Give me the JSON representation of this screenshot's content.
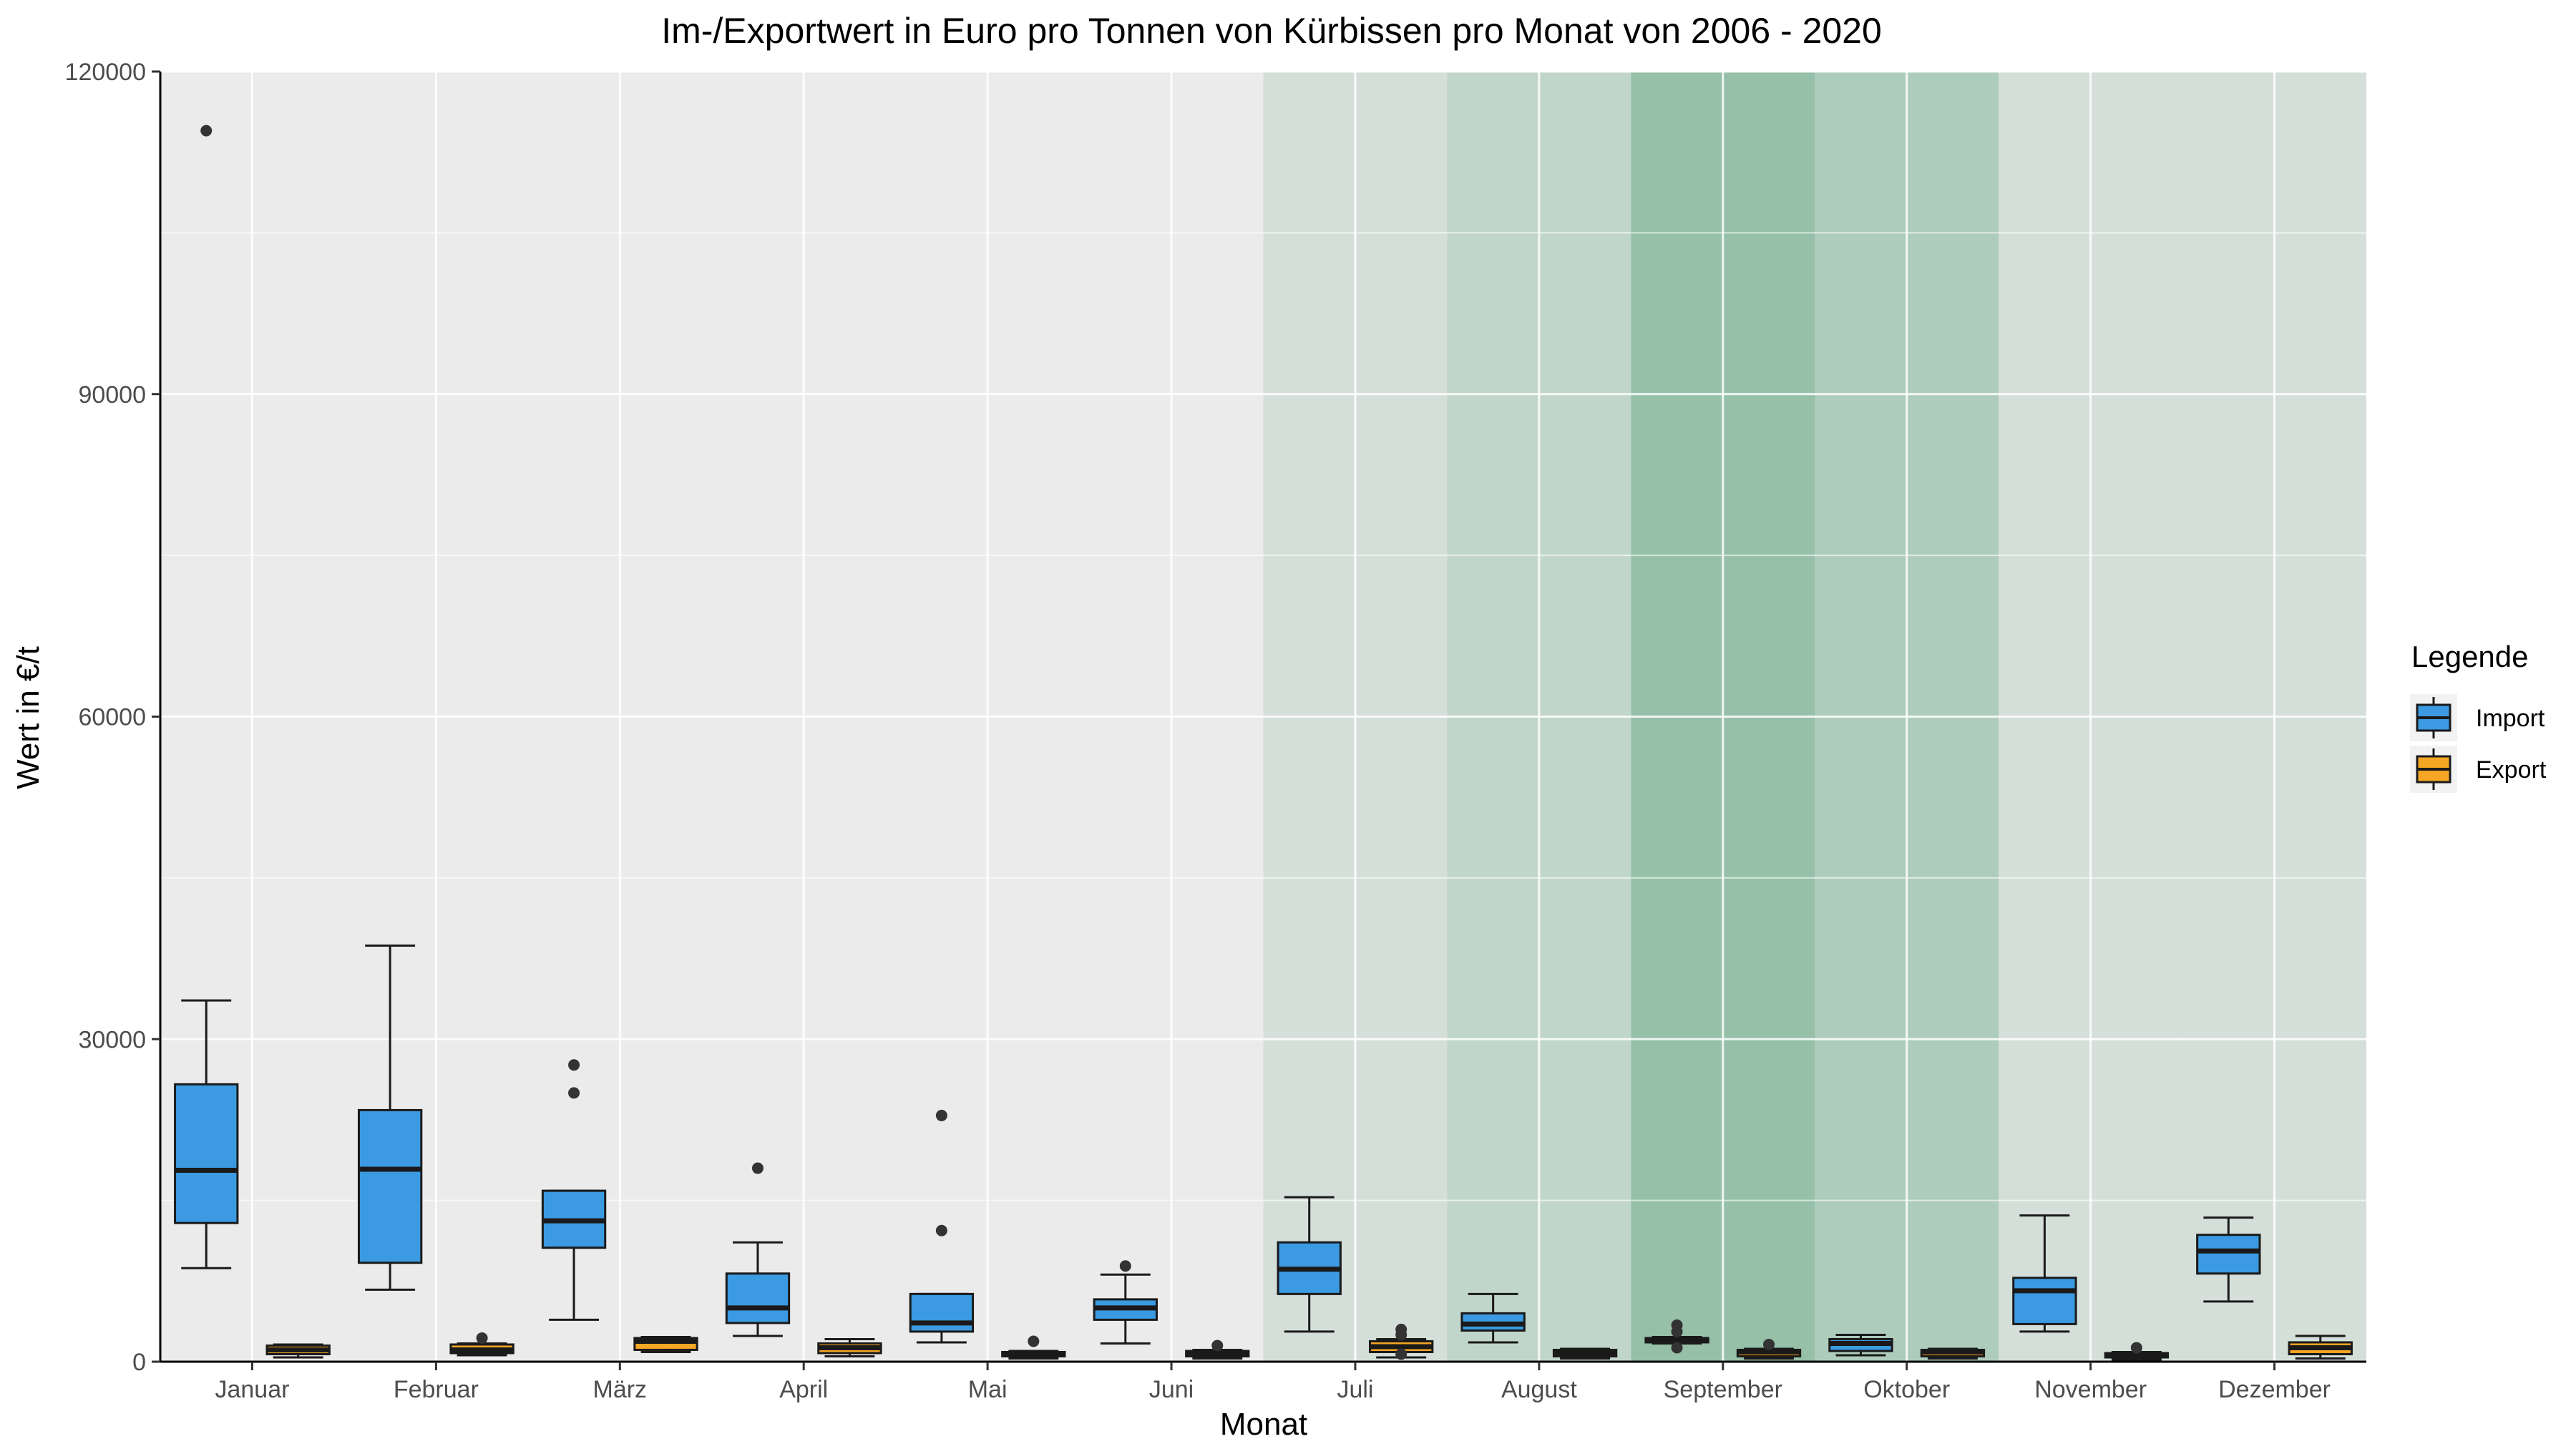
{
  "chart_data": {
    "type": "boxplot",
    "title": "Im-/Exportwert in Euro pro Tonnen von Kürbissen pro Monat von 2006 - 2020",
    "xlabel": "Monat",
    "ylabel": "Wert in €/t",
    "ylim": [
      0,
      120000
    ],
    "yticks": [
      0,
      30000,
      60000,
      90000,
      120000
    ],
    "categories": [
      "Januar",
      "Februar",
      "März",
      "April",
      "Mai",
      "Juni",
      "Juli",
      "August",
      "September",
      "Oktober",
      "November",
      "Dezember"
    ],
    "legend": {
      "title": "Legende",
      "position": "right"
    },
    "season_shading": [
      {
        "month": "Juli",
        "opacity": 0.12
      },
      {
        "month": "August",
        "opacity": 0.22
      },
      {
        "month": "September",
        "opacity": 0.45
      },
      {
        "month": "Oktober",
        "opacity": 0.32
      },
      {
        "month": "November",
        "opacity": 0.12
      },
      {
        "month": "Dezember",
        "opacity": 0.12
      }
    ],
    "series": [
      {
        "name": "Import",
        "color": "#3b9ae1",
        "boxes": [
          {
            "min": 8700,
            "q1": 12900,
            "median": 17800,
            "q3": 25800,
            "max": 33600,
            "outliers": [
              114500
            ]
          },
          {
            "min": 6700,
            "q1": 9200,
            "median": 17900,
            "q3": 23400,
            "max": 38700,
            "outliers": []
          },
          {
            "min": 3900,
            "q1": 10600,
            "median": 13100,
            "q3": 15900,
            "max": 15900,
            "outliers": [
              25000,
              27600
            ]
          },
          {
            "min": 2400,
            "q1": 3600,
            "median": 5000,
            "q3": 8200,
            "max": 11100,
            "outliers": [
              18000
            ]
          },
          {
            "min": 1800,
            "q1": 2800,
            "median": 3600,
            "q3": 6300,
            "max": 6300,
            "outliers": [
              12200,
              22900
            ]
          },
          {
            "min": 1700,
            "q1": 3900,
            "median": 5000,
            "q3": 5800,
            "max": 8100,
            "outliers": [
              8900
            ]
          },
          {
            "min": 2800,
            "q1": 6300,
            "median": 8600,
            "q3": 11100,
            "max": 15300,
            "outliers": []
          },
          {
            "min": 1800,
            "q1": 2900,
            "median": 3500,
            "q3": 4500,
            "max": 6300,
            "outliers": []
          },
          {
            "min": 1700,
            "q1": 1800,
            "median": 2000,
            "q3": 2200,
            "max": 2300,
            "outliers": [
              1300,
              2800,
              3400
            ]
          },
          {
            "min": 600,
            "q1": 1000,
            "median": 1700,
            "q3": 2100,
            "max": 2500,
            "outliers": []
          },
          {
            "min": 2800,
            "q1": 3500,
            "median": 6600,
            "q3": 7800,
            "max": 13600,
            "outliers": []
          },
          {
            "min": 5600,
            "q1": 8200,
            "median": 10300,
            "q3": 11800,
            "max": 13400,
            "outliers": []
          }
        ]
      },
      {
        "name": "Export",
        "color": "#f5a623",
        "boxes": [
          {
            "min": 400,
            "q1": 700,
            "median": 1100,
            "q3": 1500,
            "max": 1600,
            "outliers": []
          },
          {
            "min": 600,
            "q1": 800,
            "median": 1100,
            "q3": 1600,
            "max": 1700,
            "outliers": [
              2200
            ]
          },
          {
            "min": 900,
            "q1": 1100,
            "median": 1900,
            "q3": 2200,
            "max": 2300,
            "outliers": []
          },
          {
            "min": 500,
            "q1": 800,
            "median": 1300,
            "q3": 1700,
            "max": 2100,
            "outliers": []
          },
          {
            "min": 300,
            "q1": 500,
            "median": 700,
            "q3": 900,
            "max": 1000,
            "outliers": [
              1900
            ]
          },
          {
            "min": 300,
            "q1": 500,
            "median": 800,
            "q3": 1000,
            "max": 1100,
            "outliers": [
              1500
            ]
          },
          {
            "min": 400,
            "q1": 900,
            "median": 1400,
            "q3": 1900,
            "max": 2100,
            "outliers": [
              700,
              2500,
              3000
            ]
          },
          {
            "min": 300,
            "q1": 500,
            "median": 800,
            "q3": 1100,
            "max": 1200,
            "outliers": []
          },
          {
            "min": 300,
            "q1": 500,
            "median": 900,
            "q3": 1100,
            "max": 1200,
            "outliers": [
              1600
            ]
          },
          {
            "min": 300,
            "q1": 500,
            "median": 900,
            "q3": 1100,
            "max": 1200,
            "outliers": []
          },
          {
            "min": 200,
            "q1": 400,
            "median": 600,
            "q3": 800,
            "max": 900,
            "outliers": [
              1300
            ]
          },
          {
            "min": 300,
            "q1": 700,
            "median": 1300,
            "q3": 1800,
            "max": 2400,
            "outliers": []
          }
        ]
      }
    ]
  }
}
